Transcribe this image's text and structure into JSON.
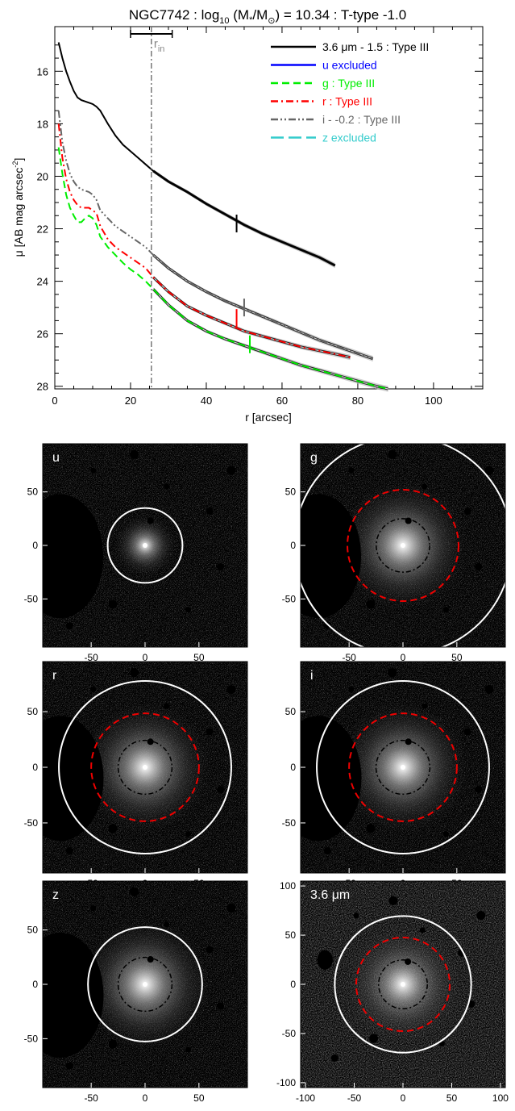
{
  "chart_data": [
    {
      "type": "line",
      "title": "NGC7742 : log10 (M*/M⊙) = 10.34 : T-type -1.0",
      "title_parts": {
        "a": "NGC7742 : log",
        "b": "10",
        "c": " (M",
        "d": "*",
        "e": "/M",
        "f": "⊙",
        "g": ") = 10.34 : T-type -1.0"
      },
      "xlabel": "r [arcsec]",
      "ylabel": "μ [AB mag arcsec⁻²]",
      "ylabel_parts": {
        "a": "μ [AB mag arcsec",
        "b": "-2",
        "c": "]"
      },
      "xlim": [
        0,
        113
      ],
      "ylim": [
        28.1,
        14.3
      ],
      "y_inverted": true,
      "xticks": [
        0,
        20,
        40,
        60,
        80,
        100
      ],
      "yticks": [
        16,
        18,
        20,
        22,
        24,
        26,
        28
      ],
      "rin": {
        "value": 25.5,
        "error_low": 20,
        "error_high": 31,
        "label": "r",
        "label_sub": "in"
      },
      "legend_position": "top-right",
      "series": [
        {
          "name": "3.6 μm - 1.5 : Type III",
          "color": "#000000",
          "dash": "solid",
          "x": [
            1,
            2,
            3,
            4,
            5,
            6,
            7,
            8,
            9,
            10,
            11,
            12,
            14,
            16,
            18,
            20,
            22,
            24,
            26,
            30,
            35,
            40,
            45,
            50,
            55,
            60,
            65,
            70,
            74
          ],
          "y": [
            14.9,
            15.5,
            16.0,
            16.4,
            16.75,
            17.0,
            17.1,
            17.15,
            17.2,
            17.25,
            17.35,
            17.5,
            18.0,
            18.45,
            18.8,
            19.05,
            19.3,
            19.55,
            19.8,
            20.2,
            20.6,
            21.05,
            21.45,
            21.85,
            22.2,
            22.5,
            22.8,
            23.1,
            23.4
          ],
          "break_x": 48,
          "break_y": 21.8
        },
        {
          "name": "u excluded",
          "color": "#0000ff",
          "dash": "solid",
          "x": [],
          "y": []
        },
        {
          "name": "g : Type III",
          "color": "#00ee00",
          "dash": "dashed",
          "x": [
            1,
            2,
            3,
            4,
            5,
            6,
            7,
            8,
            9,
            10,
            11,
            12,
            14,
            16,
            18,
            20,
            22,
            24,
            26,
            30,
            35,
            40,
            45,
            50,
            55,
            60,
            65,
            70,
            75,
            80,
            85,
            88
          ],
          "y": [
            18.9,
            19.9,
            20.7,
            21.2,
            21.5,
            21.75,
            21.75,
            21.6,
            21.5,
            21.6,
            21.85,
            22.3,
            22.7,
            23.0,
            23.3,
            23.55,
            23.75,
            24.0,
            24.3,
            24.9,
            25.5,
            25.9,
            26.2,
            26.45,
            26.7,
            26.95,
            27.2,
            27.4,
            27.6,
            27.8,
            28.0,
            28.1
          ],
          "break_x": 51.5,
          "break_y": 26.4
        },
        {
          "name": "r : Type III",
          "color": "#ff0000",
          "dash": "dashdot",
          "x": [
            1,
            2,
            3,
            4,
            5,
            6,
            7,
            8,
            9,
            10,
            11,
            12,
            14,
            16,
            18,
            20,
            22,
            24,
            26,
            30,
            35,
            40,
            45,
            50,
            55,
            60,
            65,
            70,
            75,
            78
          ],
          "y": [
            18.0,
            19.3,
            20.1,
            20.6,
            20.9,
            21.1,
            21.2,
            21.2,
            21.2,
            21.3,
            21.4,
            21.9,
            22.4,
            22.7,
            22.9,
            23.1,
            23.3,
            23.5,
            23.85,
            24.4,
            24.95,
            25.3,
            25.6,
            25.9,
            26.1,
            26.3,
            26.5,
            26.65,
            26.8,
            26.9
          ],
          "break_x": 48,
          "break_y": 25.4
        },
        {
          "name": "i - -0.2 : Type III",
          "color": "#666666",
          "dash": "dashdotdot",
          "x": [
            1,
            2,
            3,
            4,
            5,
            6,
            7,
            8,
            9,
            10,
            11,
            12,
            14,
            16,
            18,
            20,
            22,
            24,
            26,
            30,
            35,
            40,
            45,
            50,
            55,
            60,
            65,
            70,
            75,
            80,
            84
          ],
          "y": [
            17.5,
            18.7,
            19.4,
            19.9,
            20.2,
            20.4,
            20.5,
            20.55,
            20.6,
            20.7,
            20.9,
            21.3,
            21.6,
            21.9,
            22.1,
            22.3,
            22.5,
            22.7,
            23.0,
            23.5,
            24.0,
            24.4,
            24.75,
            25.05,
            25.35,
            25.65,
            25.95,
            26.25,
            26.5,
            26.75,
            26.95
          ],
          "break_x": 50,
          "break_y": 25.0
        },
        {
          "name": "z excluded",
          "color": "#33cccc",
          "dash": "longdash",
          "x": [],
          "y": []
        }
      ]
    },
    {
      "type": "image",
      "panels": [
        {
          "label": "u",
          "xticks": [
            "-50",
            "0",
            "50"
          ],
          "yticks": [
            "50",
            "0",
            "-50"
          ],
          "range": 95,
          "outer_radius": 35,
          "inner_radius": null,
          "mid_radius": null
        },
        {
          "label": "g",
          "xticks": [
            "-50",
            "0",
            "50"
          ],
          "yticks": [
            "50",
            "0",
            "-50"
          ],
          "range": 95,
          "outer_radius": 102,
          "inner_radius": 25,
          "mid_radius": 52
        },
        {
          "label": "r",
          "xticks": [
            "-50",
            "0",
            "50"
          ],
          "yticks": [
            "50",
            "0",
            "-50"
          ],
          "range": 95,
          "outer_radius": 80,
          "inner_radius": 25,
          "mid_radius": 50
        },
        {
          "label": "i",
          "xticks": [
            "-50",
            "0",
            "50"
          ],
          "yticks": [
            "50",
            "0",
            "-50"
          ],
          "range": 95,
          "outer_radius": 80,
          "inner_radius": 25,
          "mid_radius": 50
        },
        {
          "label": "z",
          "xticks": [
            "-50",
            "0",
            "50"
          ],
          "yticks": [
            "50",
            "0",
            "-50"
          ],
          "range": 95,
          "outer_radius": 53,
          "inner_radius": 25,
          "mid_radius": null
        },
        {
          "label": "3.6 μm",
          "xticks": [
            "-100",
            "-50",
            "0",
            "50",
            "100"
          ],
          "yticks": [
            "100",
            "50",
            "0",
            "-50",
            "-100"
          ],
          "range": 105,
          "outer_radius": 70,
          "inner_radius": 25,
          "mid_radius": 48
        }
      ]
    }
  ]
}
